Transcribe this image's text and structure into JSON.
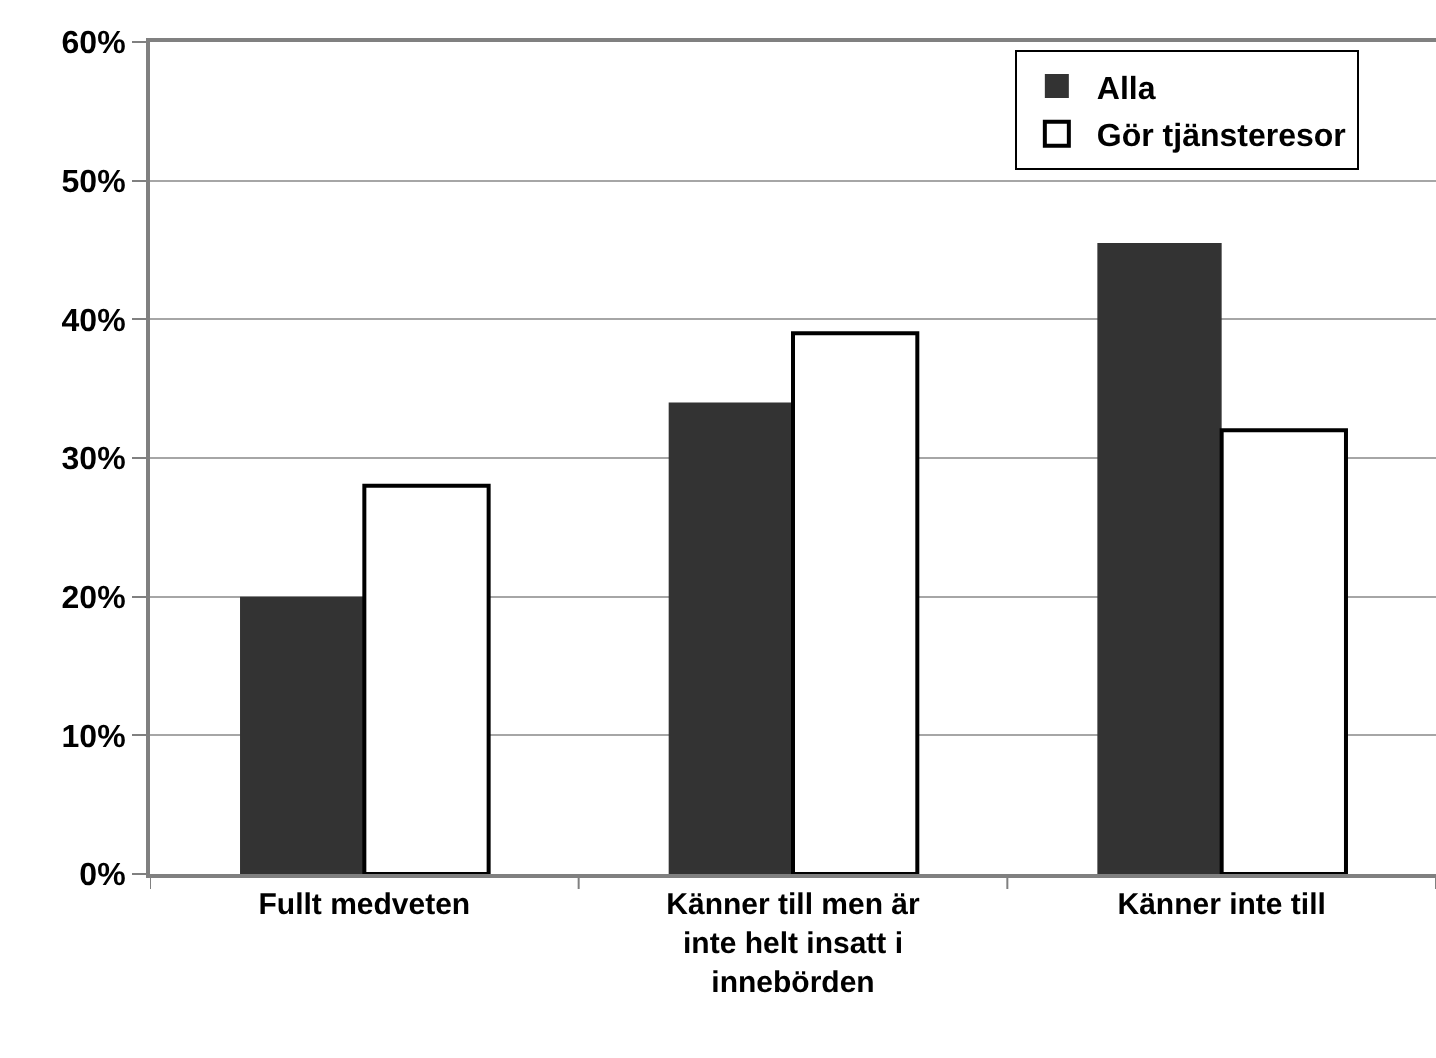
{
  "chart_data": {
    "type": "bar",
    "categories": [
      "Fullt medveten",
      "Känner till men är inte helt insatt i innebörden",
      "Känner inte till"
    ],
    "series": [
      {
        "name": "Alla",
        "color": "#333333",
        "values": [
          20,
          34,
          45.5
        ]
      },
      {
        "name": "Gör tjänsteresor",
        "color": "#ffffff",
        "values": [
          28,
          39,
          32
        ]
      }
    ],
    "ylim": [
      0,
      60
    ],
    "yticks": [
      {
        "value": 0,
        "label": "0%"
      },
      {
        "value": 10,
        "label": "10%"
      },
      {
        "value": 20,
        "label": "20%"
      },
      {
        "value": 30,
        "label": "30%"
      },
      {
        "value": 40,
        "label": "40%"
      },
      {
        "value": 50,
        "label": "50%"
      },
      {
        "value": 60,
        "label": "60%"
      }
    ],
    "grid": "y",
    "legend": "top right"
  }
}
